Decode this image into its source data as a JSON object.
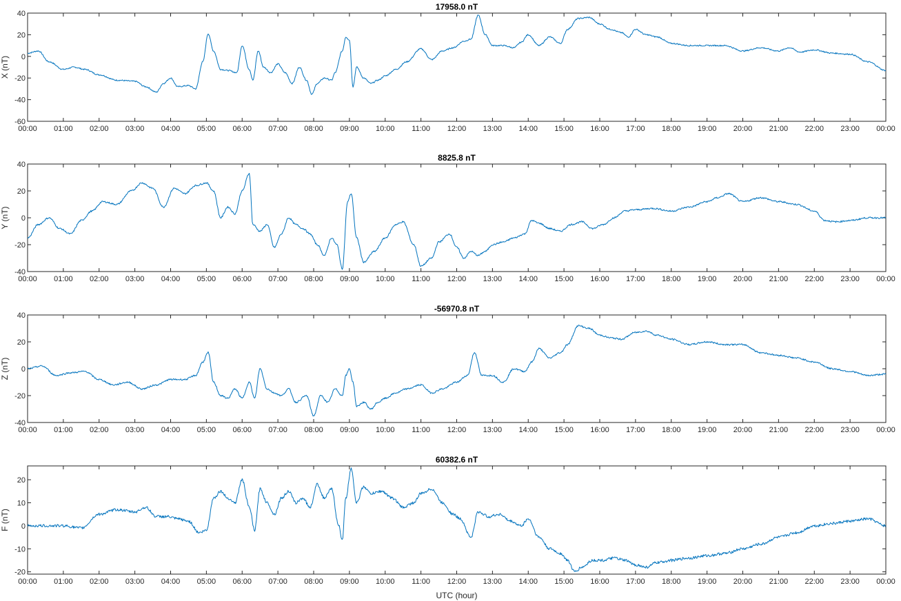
{
  "figure": {
    "xlabel": "UTC (hour)"
  },
  "chart_data": [
    {
      "type": "line",
      "title": "17958.0 nT",
      "ylabel": "X (nT)",
      "xlabel": "",
      "xlim": [
        0,
        24
      ],
      "ylim": [
        -60,
        40
      ],
      "yticks": [
        -60,
        -40,
        -20,
        0,
        20,
        40
      ],
      "xtick_labels": [
        "00:00",
        "01:00",
        "02:00",
        "03:00",
        "04:00",
        "05:00",
        "06:00",
        "07:00",
        "08:00",
        "09:00",
        "10:00",
        "11:00",
        "12:00",
        "13:00",
        "14:00",
        "15:00",
        "16:00",
        "17:00",
        "18:00",
        "19:00",
        "20:00",
        "21:00",
        "22:00",
        "23:00",
        "00:00"
      ],
      "color": "#0072bd",
      "series": [
        {
          "x": [
            0,
            0.3,
            0.6,
            1,
            1.3,
            1.6,
            2,
            2.5,
            3,
            3.3,
            3.6,
            3.8,
            4,
            4.2,
            4.5,
            4.7,
            4.9,
            5.05,
            5.2,
            5.4,
            5.6,
            5.85,
            6,
            6.2,
            6.3,
            6.45,
            6.6,
            6.8,
            7,
            7.2,
            7.4,
            7.6,
            7.8,
            7.95,
            8.1,
            8.3,
            8.5,
            8.6,
            8.8,
            8.9,
            9,
            9.1,
            9.2,
            9.4,
            9.6,
            9.8,
            10,
            10.3,
            10.6,
            11,
            11.3,
            11.6,
            11.9,
            12.2,
            12.4,
            12.6,
            12.8,
            13,
            13.3,
            13.6,
            13.8,
            14,
            14.3,
            14.6,
            14.9,
            15.1,
            15.4,
            15.7,
            16,
            16.3,
            16.6,
            16.8,
            17,
            17.3,
            17.6,
            18,
            18.5,
            19,
            19.5,
            20,
            20.5,
            21,
            21.3,
            21.6,
            22,
            22.5,
            23,
            23.5,
            24
          ],
          "y": [
            3,
            5,
            -5,
            -12,
            -10,
            -12,
            -17,
            -22,
            -23,
            -28,
            -33,
            -25,
            -20,
            -28,
            -27,
            -30,
            -5,
            21,
            5,
            -12,
            -13,
            -15,
            10,
            -12,
            -22,
            5,
            -10,
            -15,
            -7,
            -15,
            -25,
            -10,
            -22,
            -35,
            -25,
            -20,
            -22,
            -15,
            5,
            18,
            15,
            -28,
            -10,
            -20,
            -25,
            -22,
            -18,
            -12,
            -5,
            7,
            -3,
            5,
            8,
            14,
            16,
            38,
            20,
            10,
            10,
            8,
            13,
            20,
            10,
            18,
            12,
            25,
            35,
            36,
            30,
            25,
            22,
            18,
            25,
            20,
            18,
            12,
            10,
            10,
            10,
            5,
            8,
            5,
            8,
            4,
            6,
            3,
            2,
            -5,
            -13
          ]
        }
      ]
    },
    {
      "type": "line",
      "title": "8825.8 nT",
      "ylabel": "Y (nT)",
      "xlabel": "",
      "xlim": [
        0,
        24
      ],
      "ylim": [
        -40,
        40
      ],
      "yticks": [
        -40,
        -20,
        0,
        20,
        40
      ],
      "xtick_labels": [
        "00:00",
        "01:00",
        "02:00",
        "03:00",
        "04:00",
        "05:00",
        "06:00",
        "07:00",
        "08:00",
        "09:00",
        "10:00",
        "11:00",
        "12:00",
        "13:00",
        "14:00",
        "15:00",
        "16:00",
        "17:00",
        "18:00",
        "19:00",
        "20:00",
        "21:00",
        "22:00",
        "23:00",
        "00:00"
      ],
      "color": "#0072bd",
      "series": [
        {
          "x": [
            0,
            0.3,
            0.6,
            0.9,
            1.2,
            1.5,
            1.8,
            2.1,
            2.5,
            2.9,
            3.2,
            3.5,
            3.8,
            4.1,
            4.4,
            4.7,
            5,
            5.2,
            5.4,
            5.6,
            5.8,
            6,
            6.2,
            6.3,
            6.5,
            6.7,
            6.9,
            7.1,
            7.3,
            7.5,
            7.7,
            7.9,
            8.1,
            8.3,
            8.5,
            8.65,
            8.8,
            8.95,
            9.05,
            9.2,
            9.4,
            9.7,
            10,
            10.3,
            10.5,
            10.8,
            11,
            11.3,
            11.5,
            11.8,
            12,
            12.2,
            12.4,
            12.6,
            12.8,
            13,
            13.3,
            13.6,
            13.9,
            14.1,
            14.3,
            14.6,
            14.9,
            15.2,
            15.5,
            15.8,
            16.1,
            16.4,
            16.7,
            17,
            17.5,
            18,
            18.5,
            19,
            19.3,
            19.6,
            20,
            20.5,
            21,
            21.5,
            22,
            22.3,
            22.6,
            23,
            23.5,
            24
          ],
          "y": [
            -15,
            -5,
            0,
            -8,
            -12,
            -2,
            5,
            12,
            10,
            20,
            26,
            22,
            8,
            22,
            18,
            24,
            26,
            20,
            0,
            8,
            3,
            20,
            33,
            -5,
            -10,
            -5,
            -22,
            -12,
            0,
            -5,
            -8,
            -12,
            -20,
            -28,
            -15,
            -20,
            -38,
            12,
            18,
            -15,
            -33,
            -25,
            -15,
            -5,
            -3,
            -20,
            -36,
            -30,
            -18,
            -12,
            -22,
            -30,
            -25,
            -28,
            -25,
            -20,
            -18,
            -15,
            -12,
            -2,
            -4,
            -8,
            -10,
            -5,
            -3,
            -8,
            -5,
            0,
            5,
            6,
            7,
            5,
            8,
            12,
            15,
            18,
            12,
            15,
            12,
            10,
            5,
            -2,
            -3,
            -2,
            0,
            0
          ]
        }
      ]
    },
    {
      "type": "line",
      "title": "-56970.8 nT",
      "ylabel": "Z (nT)",
      "xlabel": "",
      "xlim": [
        0,
        24
      ],
      "ylim": [
        -40,
        40
      ],
      "yticks": [
        -40,
        -20,
        0,
        20,
        40
      ],
      "xtick_labels": [
        "00:00",
        "01:00",
        "02:00",
        "03:00",
        "04:00",
        "05:00",
        "06:00",
        "07:00",
        "08:00",
        "09:00",
        "10:00",
        "11:00",
        "12:00",
        "13:00",
        "14:00",
        "15:00",
        "16:00",
        "17:00",
        "18:00",
        "19:00",
        "20:00",
        "21:00",
        "22:00",
        "23:00",
        "00:00"
      ],
      "color": "#0072bd",
      "series": [
        {
          "x": [
            0,
            0.4,
            0.8,
            1.2,
            1.6,
            2,
            2.4,
            2.8,
            3.2,
            3.6,
            4,
            4.4,
            4.7,
            4.9,
            5.05,
            5.2,
            5.4,
            5.6,
            5.8,
            6,
            6.2,
            6.35,
            6.5,
            6.7,
            6.9,
            7.1,
            7.3,
            7.5,
            7.8,
            8,
            8.2,
            8.4,
            8.6,
            8.8,
            8.9,
            9,
            9.1,
            9.2,
            9.4,
            9.6,
            9.8,
            10,
            10.3,
            10.6,
            11,
            11.3,
            11.6,
            12,
            12.3,
            12.5,
            12.7,
            13,
            13.3,
            13.6,
            13.9,
            14.1,
            14.3,
            14.6,
            14.9,
            15.1,
            15.4,
            15.7,
            16,
            16.3,
            16.6,
            17,
            17.3,
            17.6,
            18,
            18.5,
            19,
            19.5,
            20,
            20.5,
            21,
            21.5,
            22,
            22.5,
            23,
            23.5,
            24
          ],
          "y": [
            0,
            2,
            -5,
            -3,
            -2,
            -8,
            -12,
            -10,
            -15,
            -12,
            -8,
            -8,
            -5,
            5,
            12,
            -10,
            -20,
            -22,
            -15,
            -22,
            -10,
            -22,
            0,
            -15,
            -18,
            -20,
            -15,
            -25,
            -20,
            -35,
            -20,
            -25,
            -15,
            -20,
            -5,
            0,
            -10,
            -28,
            -25,
            -30,
            -25,
            -22,
            -18,
            -15,
            -12,
            -18,
            -15,
            -10,
            -5,
            12,
            -5,
            -5,
            -10,
            0,
            -2,
            5,
            15,
            8,
            12,
            18,
            32,
            30,
            25,
            23,
            22,
            27,
            28,
            25,
            22,
            18,
            20,
            18,
            18,
            12,
            10,
            8,
            5,
            0,
            -2,
            -5,
            -4
          ]
        }
      ]
    },
    {
      "type": "line",
      "title": "60382.6 nT",
      "ylabel": "F (nT)",
      "xlabel": "UTC (hour)",
      "xlim": [
        0,
        24
      ],
      "ylim": [
        -21,
        26
      ],
      "yticks": [
        -20,
        -10,
        0,
        10,
        20
      ],
      "xtick_labels": [
        "00:00",
        "01:00",
        "02:00",
        "03:00",
        "04:00",
        "05:00",
        "06:00",
        "07:00",
        "08:00",
        "09:00",
        "10:00",
        "11:00",
        "12:00",
        "13:00",
        "14:00",
        "15:00",
        "16:00",
        "17:00",
        "18:00",
        "19:00",
        "20:00",
        "21:00",
        "22:00",
        "23:00",
        "00:00"
      ],
      "color": "#0072bd",
      "series": [
        {
          "x": [
            0,
            0.5,
            1,
            1.5,
            2,
            2.5,
            3,
            3.3,
            3.6,
            3.9,
            4.2,
            4.5,
            4.8,
            5,
            5.2,
            5.4,
            5.6,
            5.8,
            6,
            6.2,
            6.35,
            6.5,
            6.7,
            6.9,
            7.1,
            7.3,
            7.5,
            7.7,
            7.9,
            8.1,
            8.3,
            8.5,
            8.7,
            8.8,
            8.9,
            9.05,
            9.2,
            9.4,
            9.6,
            9.9,
            10.2,
            10.5,
            10.8,
            11,
            11.3,
            11.6,
            11.9,
            12.1,
            12.4,
            12.6,
            12.9,
            13.2,
            13.5,
            13.8,
            14,
            14.3,
            14.6,
            14.9,
            15.1,
            15.3,
            15.5,
            15.8,
            16.1,
            16.4,
            16.7,
            17,
            17.3,
            17.6,
            18,
            18.5,
            19,
            19.5,
            20,
            20.5,
            21,
            21.5,
            22,
            22.5,
            23,
            23.5,
            24
          ],
          "y": [
            0,
            0,
            0,
            -1,
            5,
            7,
            6,
            8,
            4,
            4,
            3,
            2,
            -3,
            -2,
            12,
            15,
            12,
            10,
            20,
            8,
            -2,
            16,
            10,
            5,
            12,
            15,
            10,
            12,
            8,
            18,
            12,
            16,
            0,
            -6,
            12,
            25,
            10,
            17,
            14,
            15,
            12,
            8,
            10,
            14,
            16,
            10,
            5,
            3,
            -5,
            6,
            4,
            5,
            2,
            0,
            3,
            -5,
            -10,
            -12,
            -15,
            -20,
            -18,
            -15,
            -15,
            -14,
            -15,
            -17,
            -18,
            -16,
            -15,
            -14,
            -13,
            -12,
            -10,
            -8,
            -5,
            -3,
            0,
            1,
            2,
            3,
            0
          ]
        }
      ]
    }
  ]
}
